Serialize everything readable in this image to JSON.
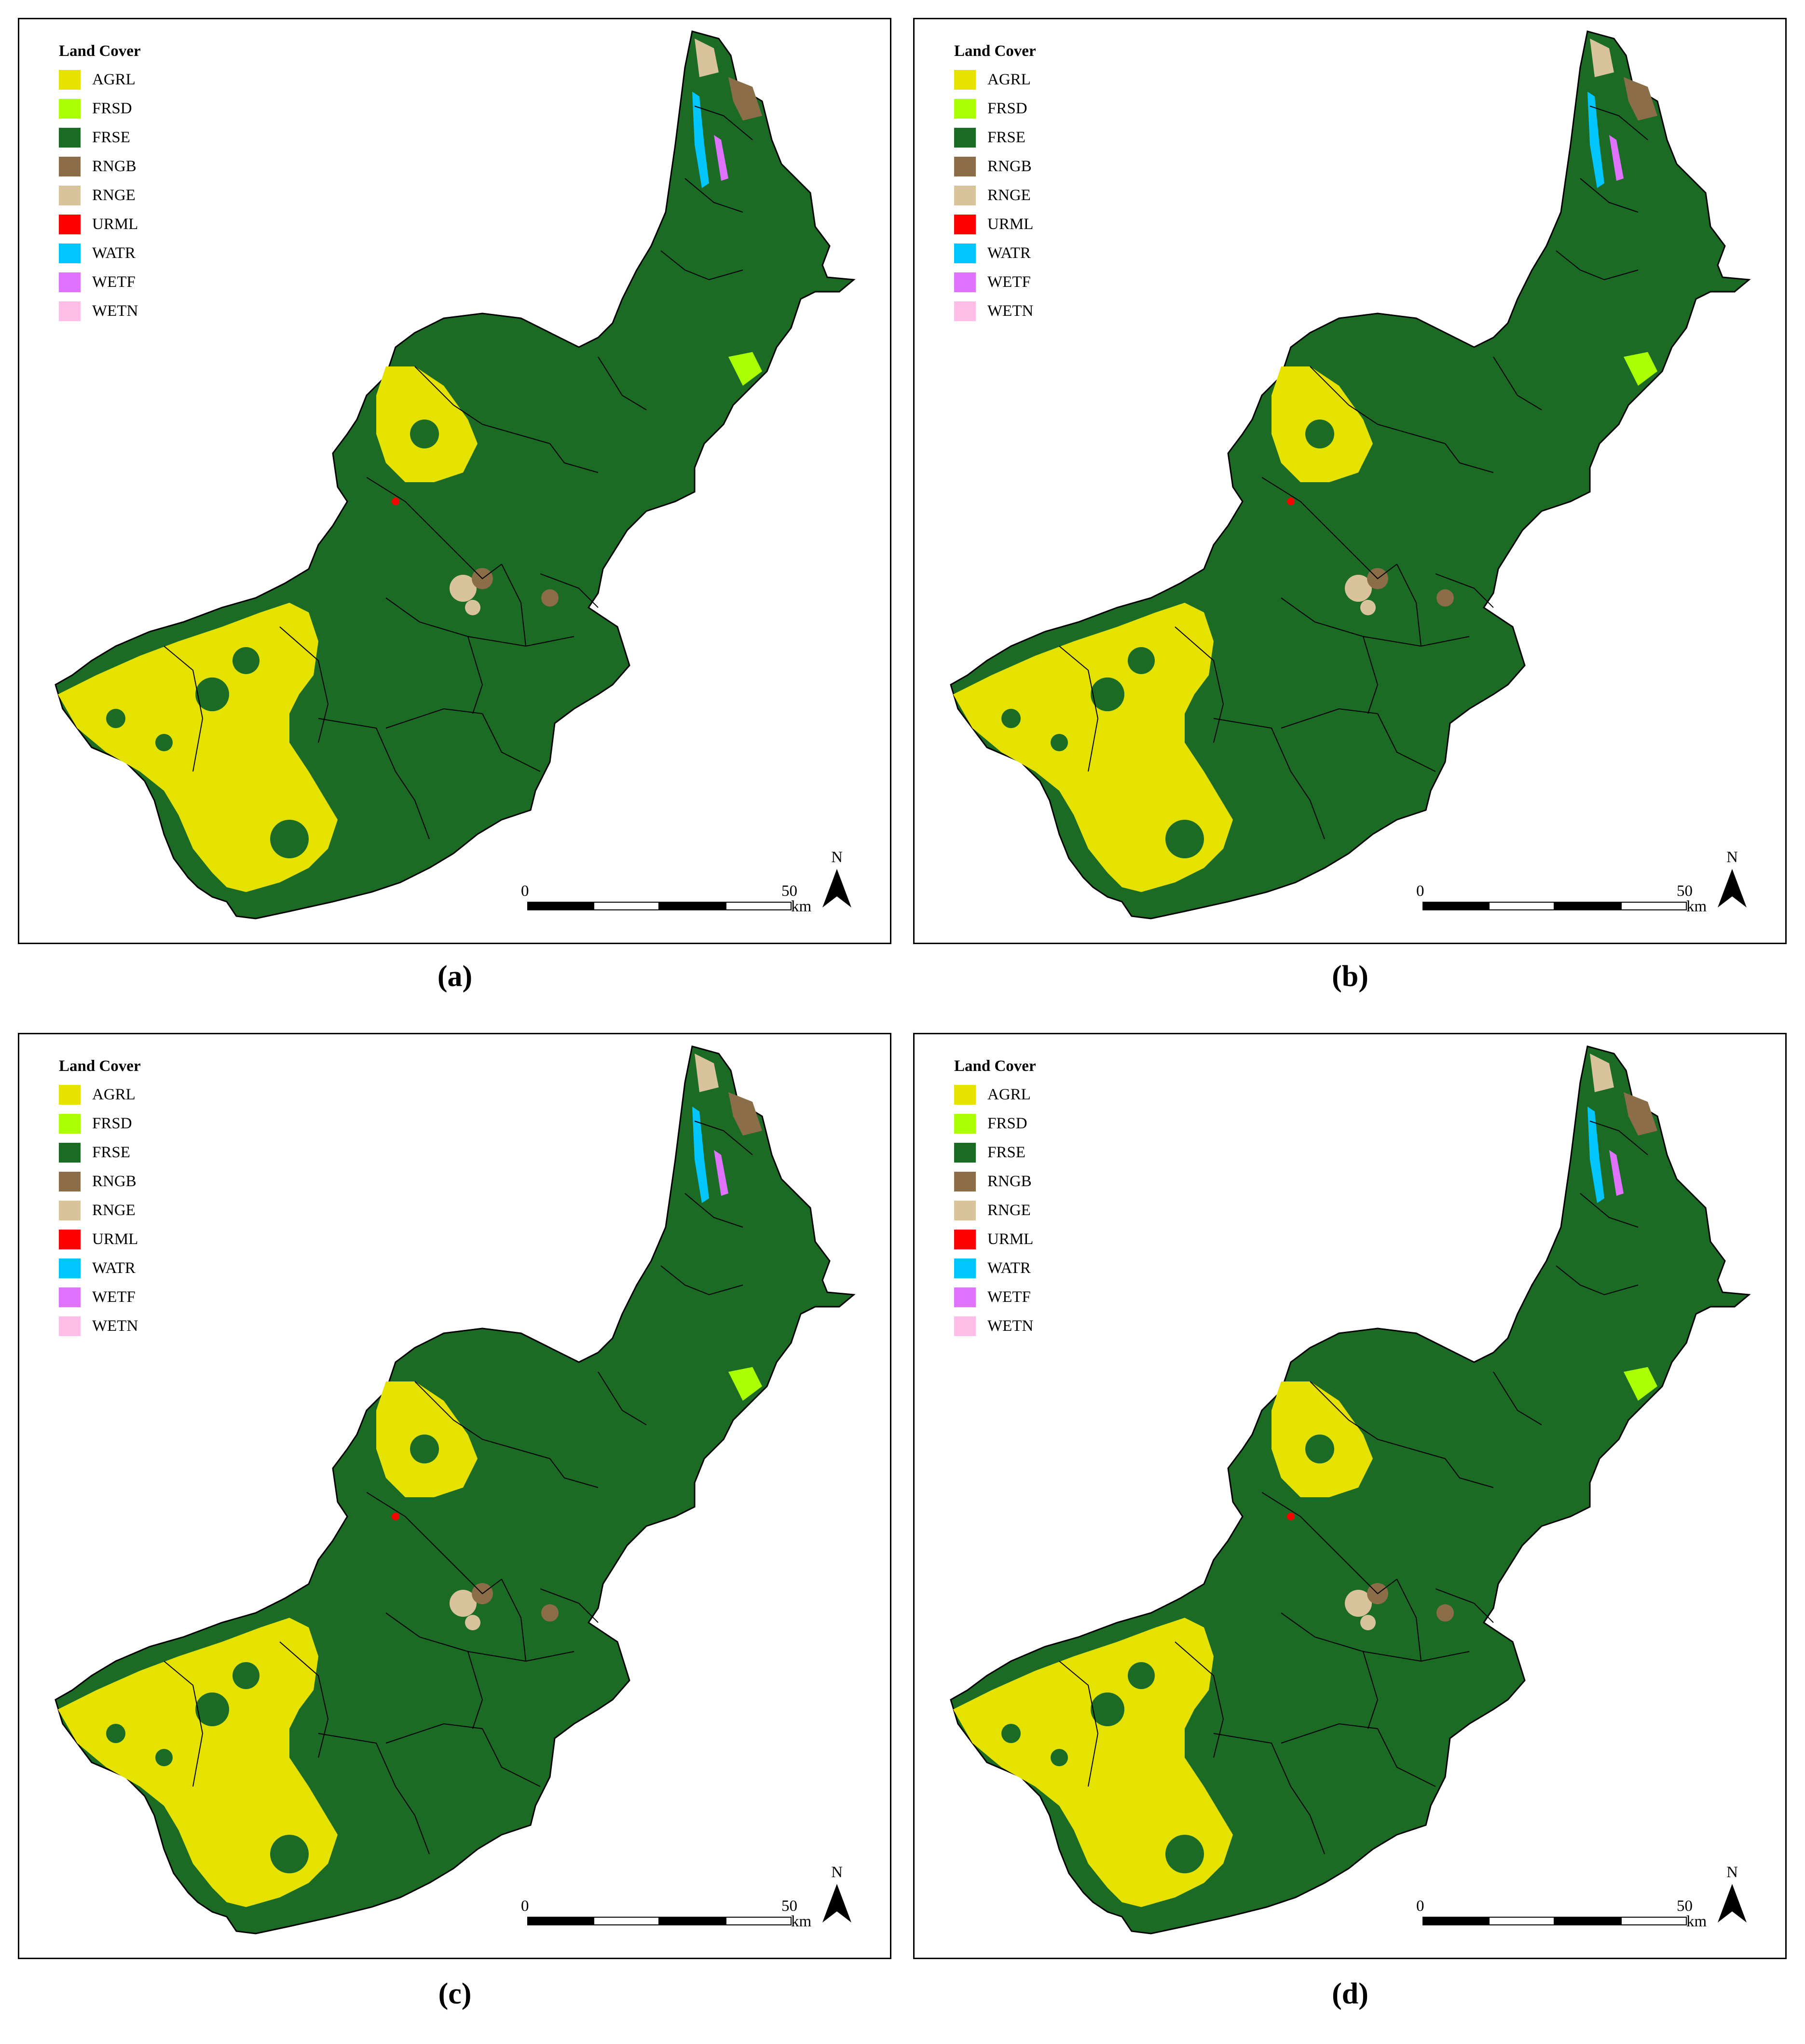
{
  "legend": {
    "title": "Land Cover",
    "items": [
      {
        "label": "AGRL",
        "color": "#e5e200"
      },
      {
        "label": "FRSD",
        "color": "#aaff00"
      },
      {
        "label": "FRSE",
        "color": "#1b6b25"
      },
      {
        "label": "RNGB",
        "color": "#8b6d47"
      },
      {
        "label": "RNGE",
        "color": "#d8c39b"
      },
      {
        "label": "URML",
        "color": "#ff0000"
      },
      {
        "label": "WATR",
        "color": "#00c5ff"
      },
      {
        "label": "WETF",
        "color": "#df73ff"
      },
      {
        "label": "WETN",
        "color": "#ffbee8"
      }
    ]
  },
  "scale": {
    "zero": "0",
    "max": "50",
    "unit": "km"
  },
  "north_label": "N",
  "panels": [
    {
      "caption": "(a)"
    },
    {
      "caption": "(b)"
    },
    {
      "caption": "(c)"
    },
    {
      "caption": "(d)"
    }
  ]
}
